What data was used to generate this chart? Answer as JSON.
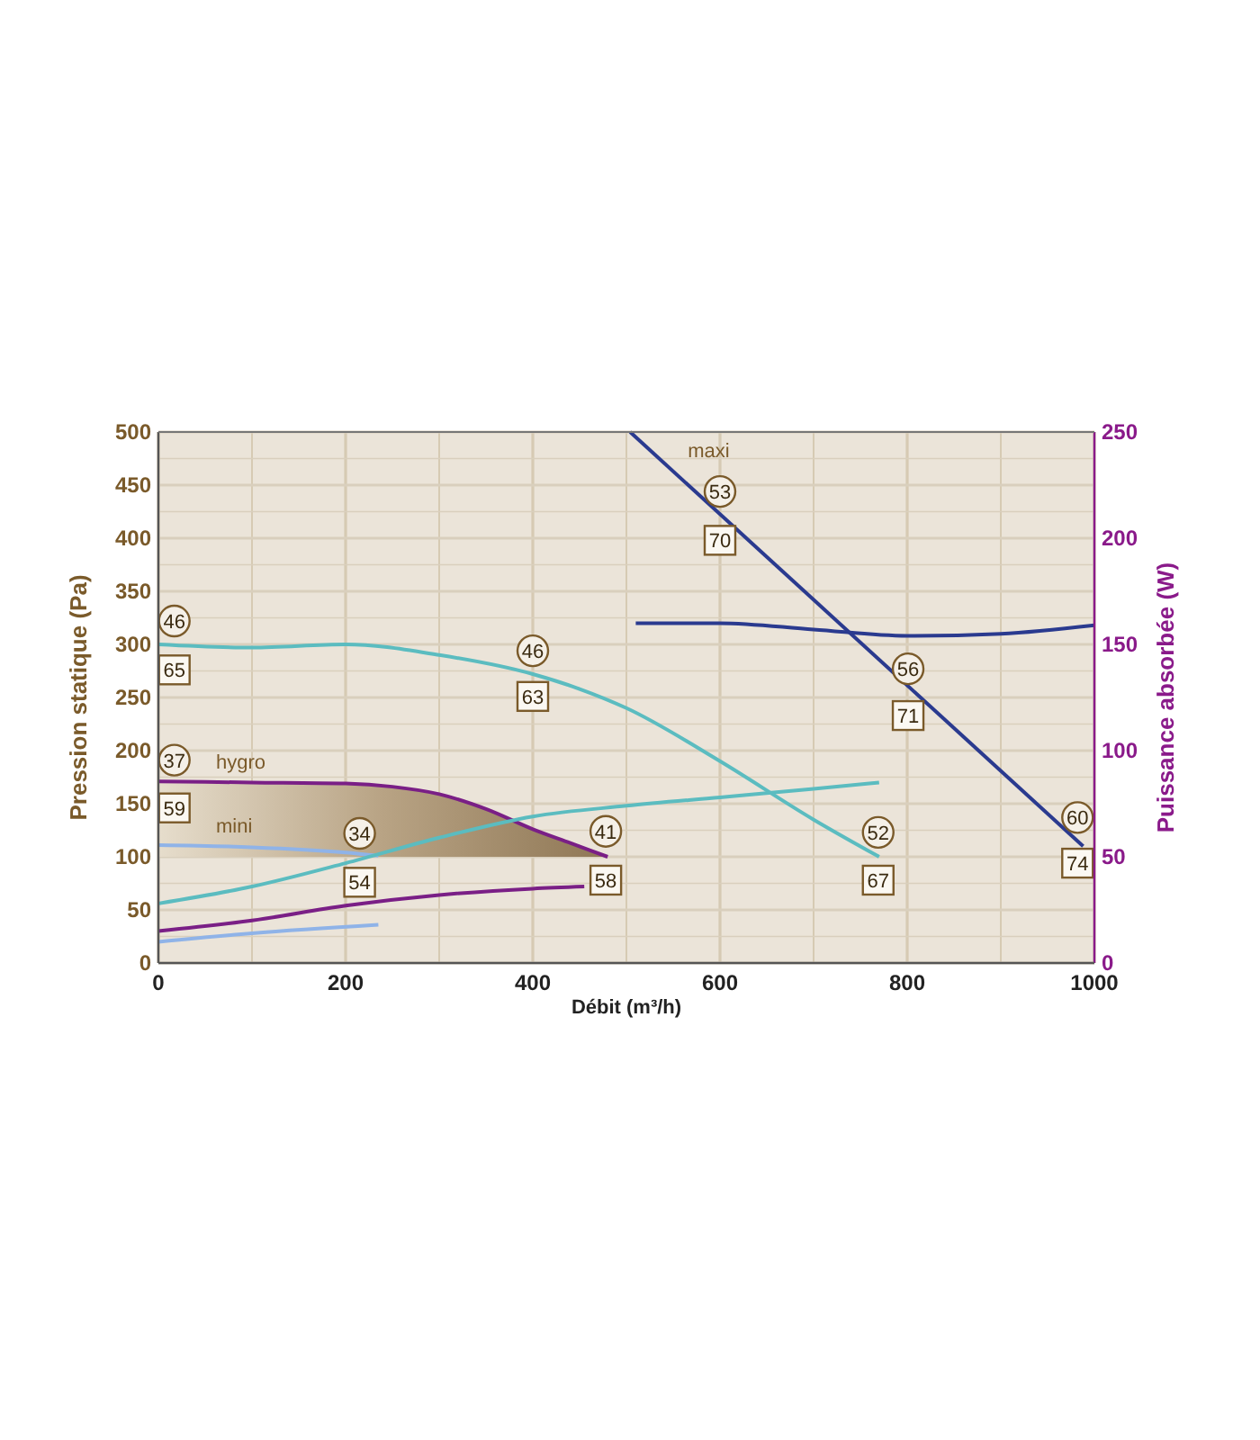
{
  "chart_data": {
    "type": "line",
    "xlabel": "Débit (m³/h)",
    "ylabel": "Pression statique (Pa)",
    "y2label": "Puissance absorbée (W)",
    "xlim": [
      0,
      1000
    ],
    "xticks": [
      0,
      {
        "value": 100,
        "label": null
      },
      200,
      {
        "value": 300,
        "label": null
      },
      400,
      {
        "value": 500,
        "label": null
      },
      600,
      {
        "value": 700,
        "label": null
      },
      800,
      {
        "value": 900,
        "label": null
      },
      1000
    ],
    "ylim": [
      0,
      500
    ],
    "yticks": [
      0,
      {
        "value": 25,
        "label": null
      },
      50,
      {
        "value": 75,
        "label": null
      },
      100,
      {
        "value": 125,
        "label": null
      },
      150,
      {
        "value": 175,
        "label": null
      },
      200,
      {
        "value": 225,
        "label": null
      },
      250,
      {
        "value": 275,
        "label": null
      },
      300,
      {
        "value": 325,
        "label": null
      },
      350,
      {
        "value": 375,
        "label": null
      },
      400,
      {
        "value": 425,
        "label": null
      },
      450,
      {
        "value": 475,
        "label": null
      },
      500
    ],
    "y2lim": [
      0,
      250
    ],
    "y2ticks": [
      0,
      50,
      100,
      150,
      200,
      250
    ],
    "grid": true,
    "marker": "none",
    "line_style": "solid",
    "series": [
      {
        "name": "hygro",
        "color": "#7a1f86",
        "x": [
          0,
          100,
          200,
          250,
          300,
          350,
          400,
          440,
          480
        ],
        "values": [
          171,
          170,
          169,
          166,
          159,
          145,
          126,
          113,
          100
        ],
        "lower": [
          100,
          100,
          100,
          100,
          100,
          100,
          100,
          100,
          100
        ],
        "upper": [
          171,
          170,
          169,
          166,
          159,
          145,
          126,
          113,
          100
        ]
      },
      {
        "name": "mini",
        "color": "#8fb3e8",
        "x": [
          0,
          100,
          200,
          235
        ],
        "values": [
          111,
          109,
          104,
          101
        ]
      },
      {
        "name": "maxi",
        "color": "#2a3a8f",
        "x": [
          504,
          988
        ],
        "values": [
          500,
          110
        ]
      },
      {
        "color": "#5bbcc0",
        "x": [
          0,
          100,
          200,
          300,
          400,
          450,
          500,
          600,
          700,
          770
        ],
        "values": [
          300,
          297,
          300,
          290,
          272,
          258,
          240,
          190,
          135,
          100
        ]
      },
      {
        "color": "#2a3a8f",
        "axis": "y2",
        "x": [
          510,
          600,
          700,
          800,
          900,
          1000
        ],
        "values": [
          160,
          160,
          157,
          154,
          155,
          159
        ]
      },
      {
        "color": "#5bbcc0",
        "axis": "y2",
        "x": [
          0,
          100,
          200,
          300,
          400,
          500,
          600,
          700,
          770
        ],
        "values": [
          28,
          36,
          47,
          59,
          69,
          74,
          78,
          82,
          85
        ]
      },
      {
        "color": "#7a1f86",
        "axis": "y2",
        "x": [
          0,
          100,
          200,
          300,
          400,
          455
        ],
        "values": [
          15,
          20,
          27,
          32,
          35,
          36
        ]
      },
      {
        "color": "#8fb3e8",
        "axis": "y2",
        "x": [
          0,
          100,
          235
        ],
        "values": [
          10,
          14,
          18
        ]
      }
    ],
    "annotations": [
      {
        "text": "46",
        "x": 17,
        "y": 322
      },
      {
        "text": "65",
        "x": 17,
        "y": 276
      },
      {
        "text": "46",
        "x": 400,
        "y": 294
      },
      {
        "text": "63",
        "x": 400,
        "y": 251
      },
      {
        "text": "37",
        "x": 17,
        "y": 191
      },
      {
        "text": "59",
        "x": 17,
        "y": 146
      },
      {
        "text": "34",
        "x": 215,
        "y": 122
      },
      {
        "text": "54",
        "x": 215,
        "y": 76
      },
      {
        "text": "41",
        "x": 478,
        "y": 124
      },
      {
        "text": "58",
        "x": 478,
        "y": 78
      },
      {
        "text": "53",
        "x": 600,
        "y": 444
      },
      {
        "text": "70",
        "x": 600,
        "y": 398
      },
      {
        "text": "56",
        "x": 801,
        "y": 277
      },
      {
        "text": "71",
        "x": 801,
        "y": 233
      },
      {
        "text": "52",
        "x": 769,
        "y": 123
      },
      {
        "text": "67",
        "x": 769,
        "y": 78
      },
      {
        "text": "60",
        "x": 982,
        "y": 137
      },
      {
        "text": "74",
        "x": 982,
        "y": 94
      }
    ]
  }
}
